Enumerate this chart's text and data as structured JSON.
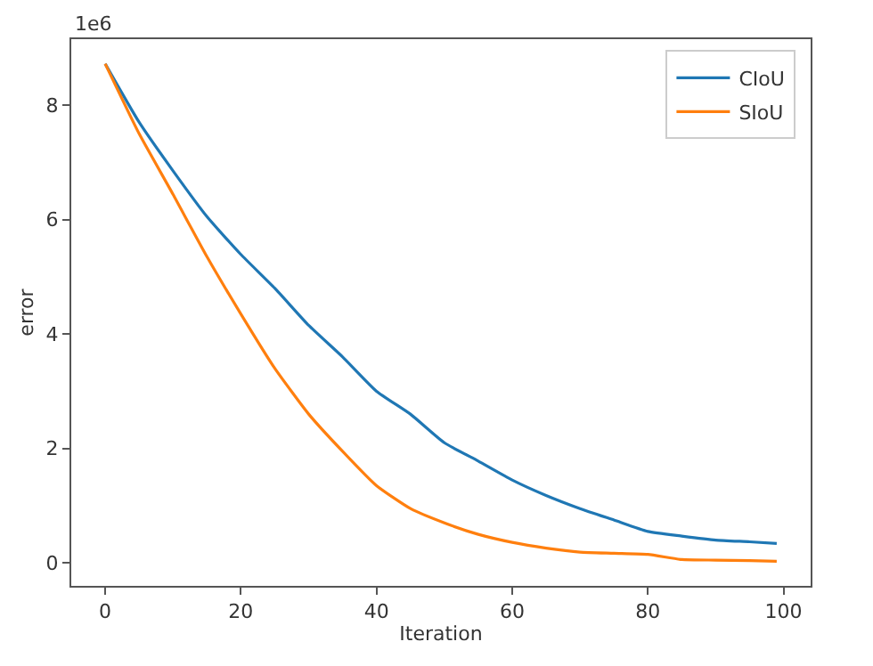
{
  "chart_data": {
    "type": "line",
    "title": "1e6",
    "xlabel": "Iteration",
    "ylabel": "error",
    "xlim": [
      -5,
      104
    ],
    "xticks": [
      0,
      20,
      40,
      60,
      80,
      100
    ],
    "ylim": [
      -0.4,
      9.15
    ],
    "yticks": [
      0,
      2,
      4,
      6,
      8
    ],
    "legend": "top right",
    "series": [
      {
        "name": "CIoU",
        "color": "#1f77b4",
        "x": [
          0,
          5,
          10,
          15,
          20,
          25,
          30,
          35,
          40,
          45,
          50,
          55,
          60,
          65,
          70,
          75,
          80,
          85,
          90,
          95,
          99
        ],
        "values": [
          8.72,
          7.7,
          6.85,
          6.05,
          5.39,
          4.8,
          4.15,
          3.6,
          3.0,
          2.6,
          2.1,
          1.78,
          1.45,
          1.18,
          0.95,
          0.75,
          0.55,
          0.47,
          0.4,
          0.37,
          0.34
        ]
      },
      {
        "name": "SIoU",
        "color": "#ff7f0e",
        "x": [
          0,
          5,
          10,
          15,
          20,
          25,
          30,
          35,
          40,
          45,
          50,
          55,
          60,
          65,
          70,
          75,
          80,
          85,
          90,
          95,
          99
        ],
        "values": [
          8.72,
          7.5,
          6.44,
          5.35,
          4.35,
          3.4,
          2.6,
          1.95,
          1.35,
          0.95,
          0.7,
          0.5,
          0.36,
          0.26,
          0.19,
          0.17,
          0.15,
          0.06,
          0.05,
          0.04,
          0.03
        ]
      }
    ]
  }
}
